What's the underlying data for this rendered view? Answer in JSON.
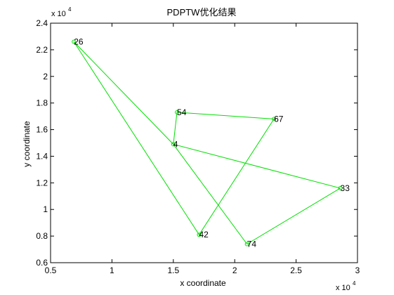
{
  "chart_data": {
    "type": "line",
    "title": "PDPTW优化结果",
    "xlabel": "x coordinate",
    "ylabel": "y coordinate",
    "x_multiplier": {
      "base": "x 10",
      "power": "4"
    },
    "y_multiplier": {
      "base": "x 10",
      "power": "4"
    },
    "xlim": [
      0.5,
      3
    ],
    "ylim": [
      0.6,
      2.4
    ],
    "x_ticks": [
      0.5,
      1,
      1.5,
      2,
      2.5,
      3
    ],
    "x_tick_labels": [
      "0.5",
      "1",
      "1.5",
      "2",
      "2.5",
      "3"
    ],
    "y_ticks": [
      0.6,
      0.8,
      1.0,
      1.2,
      1.4,
      1.6,
      1.8,
      2.0,
      2.2,
      2.4
    ],
    "y_tick_labels": [
      "0.6",
      "0.8",
      "1",
      "1.2",
      "1.4",
      "1.6",
      "1.8",
      "2",
      "2.2",
      "2.4"
    ],
    "grid": false,
    "line_color": "#00e000",
    "route": [
      {
        "label": "4",
        "x": 1.5,
        "y": 1.49
      },
      {
        "label": "54",
        "x": 1.53,
        "y": 1.73
      },
      {
        "label": "67",
        "x": 2.32,
        "y": 1.68
      },
      {
        "label": "42",
        "x": 1.71,
        "y": 0.81
      },
      {
        "label": "26",
        "x": 0.69,
        "y": 2.26
      },
      {
        "label": "",
        "x": 1.5,
        "y": 1.49
      },
      {
        "label": "33",
        "x": 2.86,
        "y": 1.16
      },
      {
        "label": "74",
        "x": 2.1,
        "y": 0.74
      },
      {
        "label": "",
        "x": 1.5,
        "y": 1.49
      }
    ]
  }
}
